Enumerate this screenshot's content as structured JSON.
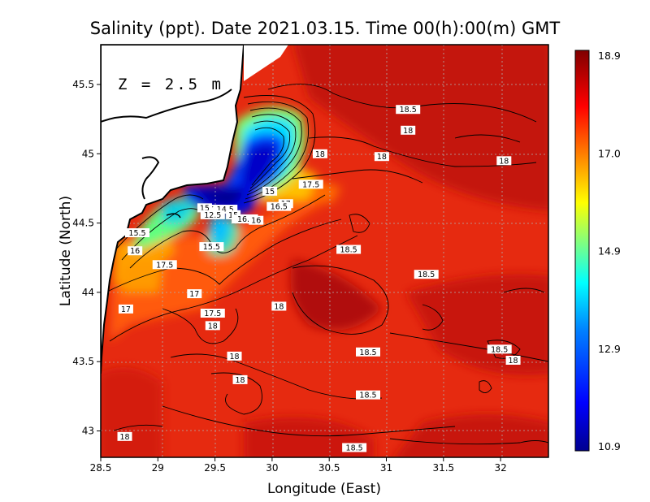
{
  "chart_data": {
    "type": "heatmap",
    "title": "Salinity (ppt). Date 2021.03.15. Time 00(h):00(m) GMT",
    "depth_label": "Z = 2.5 m",
    "xlabel": "Longitude (East)",
    "ylabel": "Latitude (North)",
    "xlim": [
      28.5,
      32.4
    ],
    "ylim": [
      42.8,
      45.8
    ],
    "x_ticks": [
      "28.5",
      "29",
      "29.5",
      "30",
      "30.5",
      "31",
      "31.5",
      "32"
    ],
    "y_ticks": [
      "43",
      "43.5",
      "44",
      "44.5",
      "45",
      "45.5"
    ],
    "grid": true,
    "colorbar": {
      "range": [
        10.9,
        18.9
      ],
      "tick_labels": [
        "18.9",
        "17.0",
        "14.9",
        "12.9",
        "10.9"
      ],
      "colors": [
        "#00008f",
        "#0000ff",
        "#0080ff",
        "#00ffff",
        "#80ff80",
        "#ffff00",
        "#ff8000",
        "#ff0000",
        "#800000"
      ]
    },
    "contour_labels": [
      {
        "text": "18.5",
        "lon": 31.19,
        "lat": 45.32
      },
      {
        "text": "18",
        "lon": 31.19,
        "lat": 45.17
      },
      {
        "text": "18",
        "lon": 30.42,
        "lat": 45.0
      },
      {
        "text": "18",
        "lon": 30.96,
        "lat": 44.98
      },
      {
        "text": "18",
        "lon": 32.03,
        "lat": 44.95
      },
      {
        "text": "17.5",
        "lon": 30.34,
        "lat": 44.78
      },
      {
        "text": "15",
        "lon": 29.98,
        "lat": 44.73
      },
      {
        "text": "17",
        "lon": 30.12,
        "lat": 44.64
      },
      {
        "text": "16.5",
        "lon": 30.06,
        "lat": 44.62
      },
      {
        "text": "15",
        "lon": 29.41,
        "lat": 44.61
      },
      {
        "text": "15",
        "lon": 29.51,
        "lat": 44.6
      },
      {
        "text": "14.5",
        "lon": 29.59,
        "lat": 44.6
      },
      {
        "text": "12.5",
        "lon": 29.48,
        "lat": 44.56
      },
      {
        "text": "15",
        "lon": 29.66,
        "lat": 44.56
      },
      {
        "text": "16",
        "lon": 29.71,
        "lat": 44.53
      },
      {
        "text": "15.5",
        "lon": 28.82,
        "lat": 44.43
      },
      {
        "text": "16.5",
        "lon": 29.77,
        "lat": 44.53
      },
      {
        "text": "16",
        "lon": 29.86,
        "lat": 44.52
      },
      {
        "text": "15.5",
        "lon": 29.47,
        "lat": 44.33
      },
      {
        "text": "16",
        "lon": 28.8,
        "lat": 44.3
      },
      {
        "text": "18.5",
        "lon": 30.67,
        "lat": 44.31
      },
      {
        "text": "17.5",
        "lon": 29.06,
        "lat": 44.2
      },
      {
        "text": "18.5",
        "lon": 31.35,
        "lat": 44.13
      },
      {
        "text": "17",
        "lon": 29.32,
        "lat": 43.99
      },
      {
        "text": "17",
        "lon": 28.72,
        "lat": 43.88
      },
      {
        "text": "18",
        "lon": 30.06,
        "lat": 43.9
      },
      {
        "text": "17.5",
        "lon": 29.48,
        "lat": 43.85
      },
      {
        "text": "18",
        "lon": 29.48,
        "lat": 43.76
      },
      {
        "text": "18.5",
        "lon": 30.84,
        "lat": 43.57
      },
      {
        "text": "18.5",
        "lon": 31.99,
        "lat": 43.59
      },
      {
        "text": "18",
        "lon": 29.67,
        "lat": 43.54
      },
      {
        "text": "18",
        "lon": 32.11,
        "lat": 43.51
      },
      {
        "text": "18",
        "lon": 29.72,
        "lat": 43.37
      },
      {
        "text": "18.5",
        "lon": 30.84,
        "lat": 43.26
      },
      {
        "text": "18",
        "lon": 28.71,
        "lat": 42.96
      },
      {
        "text": "18.5",
        "lon": 30.72,
        "lat": 42.88
      }
    ],
    "land_color": "#ffffff",
    "missing_color": "#ffffff"
  }
}
